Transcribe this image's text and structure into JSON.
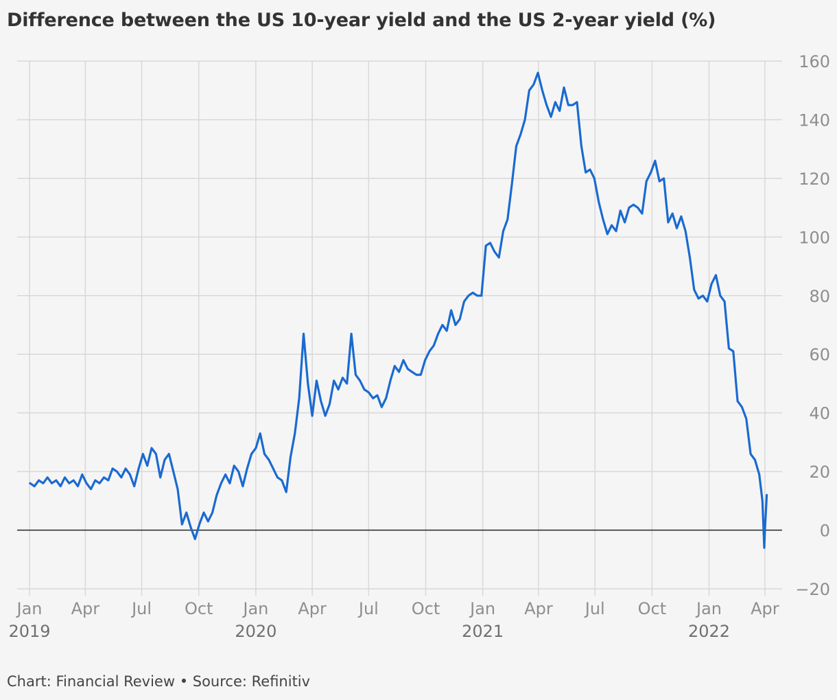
{
  "chart_data": {
    "type": "line",
    "title": "Difference between the US 10-year yield and the US 2-year yield (%)",
    "caption": "Chart: Financial Review • Source: Refinitiv",
    "ylim": [
      -20,
      160
    ],
    "yticks": [
      -20,
      0,
      20,
      40,
      60,
      80,
      100,
      120,
      140,
      160
    ],
    "xlim": [
      "2019-01-01",
      "2022-04-10"
    ],
    "y_axis_side": "right",
    "grid": true,
    "zero_line": true,
    "x_ticks": [
      {
        "date": "2019-01-01",
        "label": "Jan",
        "year": "2019"
      },
      {
        "date": "2019-04-01",
        "label": "Apr"
      },
      {
        "date": "2019-07-01",
        "label": "Jul"
      },
      {
        "date": "2019-10-01",
        "label": "Oct"
      },
      {
        "date": "2020-01-01",
        "label": "Jan",
        "year": "2020"
      },
      {
        "date": "2020-04-01",
        "label": "Apr"
      },
      {
        "date": "2020-07-01",
        "label": "Jul"
      },
      {
        "date": "2020-10-01",
        "label": "Oct"
      },
      {
        "date": "2021-01-01",
        "label": "Jan",
        "year": "2021"
      },
      {
        "date": "2021-04-01",
        "label": "Apr"
      },
      {
        "date": "2021-07-01",
        "label": "Jul"
      },
      {
        "date": "2021-10-01",
        "label": "Oct"
      },
      {
        "date": "2022-01-01",
        "label": "Jan",
        "year": "2022"
      },
      {
        "date": "2022-04-01",
        "label": "Apr"
      }
    ],
    "colors": {
      "line": "#1a6ad0",
      "grid": "#d8d8d8",
      "zero": "#222222"
    },
    "series": [
      {
        "values": [
          [
            "2019-01-02",
            16
          ],
          [
            "2019-01-09",
            15
          ],
          [
            "2019-01-16",
            17
          ],
          [
            "2019-01-23",
            16
          ],
          [
            "2019-01-30",
            18
          ],
          [
            "2019-02-06",
            16
          ],
          [
            "2019-02-13",
            17
          ],
          [
            "2019-02-20",
            15
          ],
          [
            "2019-02-27",
            18
          ],
          [
            "2019-03-06",
            16
          ],
          [
            "2019-03-13",
            17
          ],
          [
            "2019-03-20",
            15
          ],
          [
            "2019-03-27",
            19
          ],
          [
            "2019-04-03",
            16
          ],
          [
            "2019-04-10",
            14
          ],
          [
            "2019-04-17",
            17
          ],
          [
            "2019-04-24",
            16
          ],
          [
            "2019-05-01",
            18
          ],
          [
            "2019-05-08",
            17
          ],
          [
            "2019-05-15",
            21
          ],
          [
            "2019-05-22",
            20
          ],
          [
            "2019-05-29",
            18
          ],
          [
            "2019-06-05",
            21
          ],
          [
            "2019-06-12",
            19
          ],
          [
            "2019-06-19",
            15
          ],
          [
            "2019-06-26",
            21
          ],
          [
            "2019-07-03",
            26
          ],
          [
            "2019-07-10",
            22
          ],
          [
            "2019-07-17",
            28
          ],
          [
            "2019-07-24",
            26
          ],
          [
            "2019-07-31",
            18
          ],
          [
            "2019-08-07",
            24
          ],
          [
            "2019-08-14",
            26
          ],
          [
            "2019-08-21",
            20
          ],
          [
            "2019-08-28",
            14
          ],
          [
            "2019-09-04",
            2
          ],
          [
            "2019-09-11",
            6
          ],
          [
            "2019-09-18",
            1
          ],
          [
            "2019-09-25",
            -3
          ],
          [
            "2019-10-02",
            2
          ],
          [
            "2019-10-09",
            6
          ],
          [
            "2019-10-16",
            3
          ],
          [
            "2019-10-23",
            6
          ],
          [
            "2019-10-30",
            12
          ],
          [
            "2019-11-06",
            16
          ],
          [
            "2019-11-13",
            19
          ],
          [
            "2019-11-20",
            16
          ],
          [
            "2019-11-27",
            22
          ],
          [
            "2019-12-04",
            20
          ],
          [
            "2019-12-11",
            15
          ],
          [
            "2019-12-18",
            21
          ],
          [
            "2019-12-25",
            26
          ],
          [
            "2020-01-01",
            28
          ],
          [
            "2020-01-08",
            33
          ],
          [
            "2020-01-15",
            26
          ],
          [
            "2020-01-22",
            24
          ],
          [
            "2020-01-29",
            21
          ],
          [
            "2020-02-05",
            18
          ],
          [
            "2020-02-12",
            17
          ],
          [
            "2020-02-19",
            13
          ],
          [
            "2020-02-26",
            25
          ],
          [
            "2020-03-04",
            33
          ],
          [
            "2020-03-11",
            45
          ],
          [
            "2020-03-18",
            67
          ],
          [
            "2020-03-25",
            50
          ],
          [
            "2020-04-01",
            39
          ],
          [
            "2020-04-08",
            51
          ],
          [
            "2020-04-15",
            44
          ],
          [
            "2020-04-22",
            39
          ],
          [
            "2020-04-29",
            43
          ],
          [
            "2020-05-06",
            51
          ],
          [
            "2020-05-13",
            48
          ],
          [
            "2020-05-20",
            52
          ],
          [
            "2020-05-27",
            50
          ],
          [
            "2020-06-03",
            67
          ],
          [
            "2020-06-10",
            53
          ],
          [
            "2020-06-17",
            51
          ],
          [
            "2020-06-24",
            48
          ],
          [
            "2020-07-01",
            47
          ],
          [
            "2020-07-08",
            45
          ],
          [
            "2020-07-15",
            46
          ],
          [
            "2020-07-22",
            42
          ],
          [
            "2020-07-29",
            45
          ],
          [
            "2020-08-05",
            51
          ],
          [
            "2020-08-12",
            56
          ],
          [
            "2020-08-19",
            54
          ],
          [
            "2020-08-26",
            58
          ],
          [
            "2020-09-02",
            55
          ],
          [
            "2020-09-09",
            54
          ],
          [
            "2020-09-16",
            53
          ],
          [
            "2020-09-23",
            53
          ],
          [
            "2020-09-30",
            58
          ],
          [
            "2020-10-07",
            61
          ],
          [
            "2020-10-14",
            63
          ],
          [
            "2020-10-21",
            67
          ],
          [
            "2020-10-28",
            70
          ],
          [
            "2020-11-04",
            68
          ],
          [
            "2020-11-11",
            75
          ],
          [
            "2020-11-18",
            70
          ],
          [
            "2020-11-25",
            72
          ],
          [
            "2020-12-02",
            78
          ],
          [
            "2020-12-09",
            80
          ],
          [
            "2020-12-16",
            81
          ],
          [
            "2020-12-23",
            80
          ],
          [
            "2020-12-30",
            80
          ],
          [
            "2021-01-06",
            97
          ],
          [
            "2021-01-13",
            98
          ],
          [
            "2021-01-20",
            95
          ],
          [
            "2021-01-27",
            93
          ],
          [
            "2021-02-03",
            102
          ],
          [
            "2021-02-10",
            106
          ],
          [
            "2021-02-17",
            118
          ],
          [
            "2021-02-24",
            131
          ],
          [
            "2021-03-03",
            135
          ],
          [
            "2021-03-10",
            140
          ],
          [
            "2021-03-17",
            150
          ],
          [
            "2021-03-24",
            152
          ],
          [
            "2021-03-31",
            156
          ],
          [
            "2021-04-07",
            150
          ],
          [
            "2021-04-14",
            145
          ],
          [
            "2021-04-21",
            141
          ],
          [
            "2021-04-28",
            146
          ],
          [
            "2021-05-05",
            143
          ],
          [
            "2021-05-12",
            151
          ],
          [
            "2021-05-19",
            145
          ],
          [
            "2021-05-26",
            145
          ],
          [
            "2021-06-02",
            146
          ],
          [
            "2021-06-09",
            131
          ],
          [
            "2021-06-16",
            122
          ],
          [
            "2021-06-23",
            123
          ],
          [
            "2021-06-30",
            120
          ],
          [
            "2021-07-07",
            112
          ],
          [
            "2021-07-14",
            106
          ],
          [
            "2021-07-21",
            101
          ],
          [
            "2021-07-28",
            104
          ],
          [
            "2021-08-04",
            102
          ],
          [
            "2021-08-11",
            109
          ],
          [
            "2021-08-18",
            105
          ],
          [
            "2021-08-25",
            110
          ],
          [
            "2021-09-01",
            111
          ],
          [
            "2021-09-08",
            110
          ],
          [
            "2021-09-15",
            108
          ],
          [
            "2021-09-22",
            119
          ],
          [
            "2021-09-29",
            122
          ],
          [
            "2021-10-06",
            126
          ],
          [
            "2021-10-13",
            119
          ],
          [
            "2021-10-20",
            120
          ],
          [
            "2021-10-27",
            105
          ],
          [
            "2021-11-03",
            108
          ],
          [
            "2021-11-10",
            103
          ],
          [
            "2021-11-17",
            107
          ],
          [
            "2021-11-24",
            102
          ],
          [
            "2021-12-01",
            93
          ],
          [
            "2021-12-08",
            82
          ],
          [
            "2021-12-15",
            79
          ],
          [
            "2021-12-22",
            80
          ],
          [
            "2021-12-29",
            78
          ],
          [
            "2022-01-05",
            84
          ],
          [
            "2022-01-12",
            87
          ],
          [
            "2022-01-19",
            80
          ],
          [
            "2022-01-26",
            78
          ],
          [
            "2022-02-02",
            62
          ],
          [
            "2022-02-09",
            61
          ],
          [
            "2022-02-16",
            44
          ],
          [
            "2022-02-23",
            42
          ],
          [
            "2022-03-02",
            38
          ],
          [
            "2022-03-09",
            26
          ],
          [
            "2022-03-16",
            24
          ],
          [
            "2022-03-23",
            19
          ],
          [
            "2022-03-28",
            10
          ],
          [
            "2022-03-31",
            -6
          ],
          [
            "2022-04-01",
            0
          ],
          [
            "2022-04-04",
            12
          ]
        ]
      }
    ]
  }
}
